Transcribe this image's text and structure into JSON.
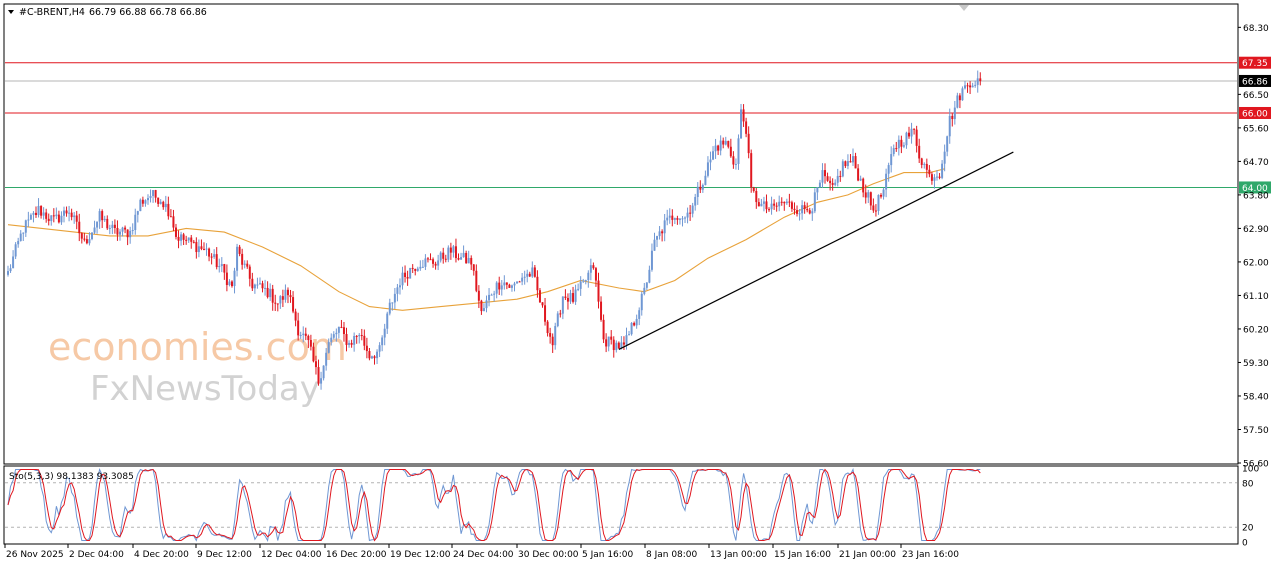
{
  "header": {
    "symbol_text": "#C-BRENT,H4",
    "ohlc_text": "66.79 66.88 66.78 66.86"
  },
  "watermark": {
    "line1": "economies.com",
    "line2": "FxNewsToday"
  },
  "colors": {
    "bull": "#6f97d3",
    "bear": "#e0171f",
    "ma": "#e8a23a",
    "resistance": "#e0171f",
    "support": "#2fa86a",
    "trendline": "#000000",
    "stoch_main": "#6f97d3",
    "stoch_signal": "#e0171f"
  },
  "chart_data": [
    {
      "type": "candlestick",
      "title": "#C-BRENT,H4",
      "ylim": [
        56.6,
        68.9
      ],
      "y_ticks": [
        "68.30",
        "67.35",
        "66.86",
        "66.50",
        "66.00",
        "65.60",
        "64.70",
        "64.00",
        "63.80",
        "62.90",
        "62.00",
        "61.10",
        "60.20",
        "59.30",
        "58.40",
        "57.50",
        "56.60"
      ],
      "x_ticks": [
        "26 Nov 2025",
        "2 Dec 04:00",
        "4 Dec 20:00",
        "9 Dec 12:00",
        "12 Dec 04:00",
        "16 Dec 20:00",
        "19 Dec 12:00",
        "24 Dec 04:00",
        "30 Dec 00:00",
        "5 Jan 16:00",
        "8 Jan 08:00",
        "13 Jan 00:00",
        "15 Jan 16:00",
        "21 Jan 00:00",
        "23 Jan 16:00"
      ],
      "current_price": 66.86,
      "levels": [
        {
          "label": "67.35",
          "value": 67.35,
          "kind": "resistance"
        },
        {
          "label": "66.00",
          "value": 66.0,
          "kind": "resistance"
        },
        {
          "label": "64.00",
          "value": 64.0,
          "kind": "support"
        }
      ],
      "moving_average": {
        "values": [
          [
            0,
            63.0
          ],
          [
            20,
            62.85
          ],
          [
            40,
            62.7
          ],
          [
            55,
            62.7
          ],
          [
            70,
            62.9
          ],
          [
            85,
            62.8
          ],
          [
            100,
            62.4
          ],
          [
            115,
            61.9
          ],
          [
            130,
            61.2
          ],
          [
            142,
            60.8
          ],
          [
            155,
            60.7
          ],
          [
            170,
            60.8
          ],
          [
            185,
            60.9
          ],
          [
            200,
            61.0
          ],
          [
            212,
            61.2
          ],
          [
            225,
            61.5
          ],
          [
            240,
            61.3
          ],
          [
            250,
            61.2
          ],
          [
            262,
            61.5
          ],
          [
            275,
            62.1
          ],
          [
            290,
            62.6
          ],
          [
            305,
            63.2
          ],
          [
            318,
            63.6
          ],
          [
            330,
            63.8
          ],
          [
            340,
            64.1
          ],
          [
            352,
            64.4
          ],
          [
            362,
            64.4
          ],
          [
            368,
            64.5
          ]
        ]
      },
      "trendline": {
        "from": [
          240,
          59.65
        ],
        "to": [
          395,
          64.95
        ]
      },
      "waypoints": [
        [
          0,
          61.7
        ],
        [
          6,
          62.9
        ],
        [
          12,
          63.4
        ],
        [
          18,
          63.1
        ],
        [
          24,
          63.4
        ],
        [
          30,
          62.5
        ],
        [
          36,
          63.2
        ],
        [
          42,
          62.8
        ],
        [
          48,
          62.8
        ],
        [
          52,
          63.6
        ],
        [
          56,
          63.8
        ],
        [
          60,
          63.7
        ],
        [
          64,
          63.3
        ],
        [
          66,
          62.7
        ],
        [
          72,
          62.5
        ],
        [
          78,
          62.3
        ],
        [
          84,
          61.8
        ],
        [
          88,
          61.3
        ],
        [
          90,
          62.3
        ],
        [
          96,
          61.4
        ],
        [
          102,
          61.2
        ],
        [
          106,
          60.9
        ],
        [
          110,
          61.2
        ],
        [
          114,
          60.2
        ],
        [
          118,
          59.8
        ],
        [
          122,
          58.8
        ],
        [
          126,
          59.8
        ],
        [
          130,
          60.2
        ],
        [
          134,
          59.8
        ],
        [
          138,
          60.1
        ],
        [
          142,
          59.5
        ],
        [
          146,
          59.6
        ],
        [
          150,
          60.8
        ],
        [
          154,
          61.5
        ],
        [
          158,
          61.8
        ],
        [
          162,
          62.0
        ],
        [
          168,
          62.0
        ],
        [
          174,
          62.3
        ],
        [
          178,
          62.1
        ],
        [
          182,
          62.0
        ],
        [
          186,
          60.6
        ],
        [
          190,
          61.2
        ],
        [
          194,
          61.5
        ],
        [
          198,
          61.3
        ],
        [
          202,
          61.6
        ],
        [
          206,
          61.7
        ],
        [
          210,
          60.7
        ],
        [
          214,
          59.8
        ],
        [
          218,
          61.1
        ],
        [
          222,
          61.0
        ],
        [
          226,
          61.4
        ],
        [
          230,
          61.9
        ],
        [
          234,
          59.9
        ],
        [
          238,
          59.8
        ],
        [
          242,
          59.7
        ],
        [
          246,
          60.4
        ],
        [
          250,
          61.2
        ],
        [
          254,
          62.5
        ],
        [
          258,
          63.0
        ],
        [
          262,
          63.3
        ],
        [
          266,
          63.2
        ],
        [
          270,
          63.7
        ],
        [
          274,
          64.4
        ],
        [
          278,
          65.1
        ],
        [
          282,
          65.2
        ],
        [
          286,
          64.6
        ],
        [
          288,
          66.0
        ],
        [
          290,
          65.6
        ],
        [
          292,
          63.9
        ],
        [
          296,
          63.5
        ],
        [
          300,
          63.4
        ],
        [
          304,
          63.6
        ],
        [
          308,
          63.5
        ],
        [
          312,
          63.4
        ],
        [
          316,
          63.5
        ],
        [
          320,
          64.3
        ],
        [
          324,
          63.9
        ],
        [
          328,
          64.6
        ],
        [
          332,
          64.7
        ],
        [
          336,
          64.0
        ],
        [
          340,
          63.4
        ],
        [
          344,
          63.9
        ],
        [
          348,
          65.1
        ],
        [
          352,
          65.3
        ],
        [
          356,
          65.5
        ],
        [
          358,
          64.9
        ],
        [
          362,
          64.3
        ],
        [
          366,
          64.4
        ],
        [
          370,
          65.8
        ],
        [
          374,
          66.5
        ],
        [
          378,
          66.86
        ]
      ],
      "stochastic": {
        "label": "Sto(5,3,3) 98.1383 93.3085",
        "k": 98.1383,
        "d": 93.3085,
        "levels": [
          "80",
          "20"
        ],
        "y_ticks": [
          "100",
          "80",
          "20",
          "0"
        ]
      }
    }
  ]
}
